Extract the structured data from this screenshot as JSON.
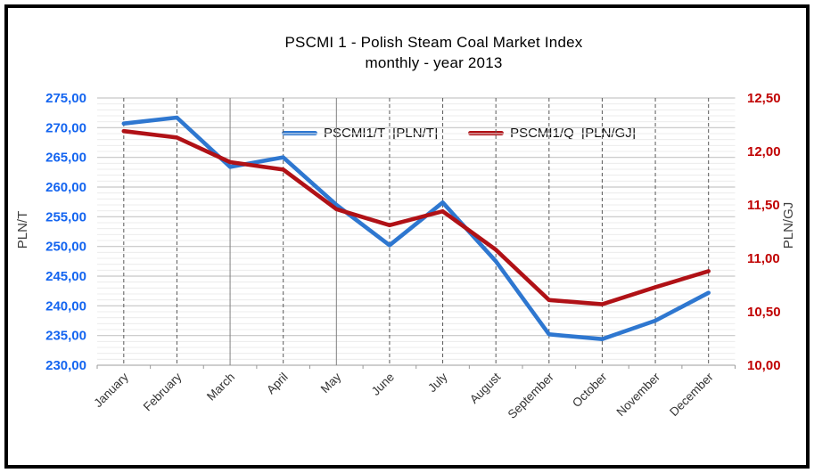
{
  "chart_data": {
    "type": "line",
    "title": "PSCMI 1 - Polish Steam Coal Market Index",
    "subtitle": "monthly - year  2013",
    "categories": [
      "January",
      "February",
      "March",
      "April",
      "May",
      "June",
      "July",
      "August",
      "September",
      "October",
      "November",
      "December"
    ],
    "series": [
      {
        "name": "PSCMI1/T  [PLN/T]",
        "axis": "left",
        "color": "#2e77d0",
        "values": [
          270.7,
          271.7,
          263.4,
          265.0,
          257.0,
          250.2,
          257.4,
          247.5,
          235.2,
          234.4,
          237.5,
          242.2
        ]
      },
      {
        "name": "PSCMI1/Q  [PLN/GJ]",
        "axis": "right",
        "color": "#b01116",
        "values": [
          12.19,
          12.13,
          11.9,
          11.83,
          11.46,
          11.31,
          11.44,
          11.08,
          10.61,
          10.57,
          10.73,
          10.88
        ]
      }
    ],
    "left_axis": {
      "title": "PLN/T",
      "min": 230,
      "max": 275,
      "major_step": 5,
      "minor_step": 1,
      "tick_labels": [
        "275,00",
        "270,00",
        "265,00",
        "260,00",
        "255,00",
        "250,00",
        "245,00",
        "240,00",
        "235,00",
        "230,00"
      ],
      "label_color": "#1465f0"
    },
    "right_axis": {
      "title": "PLN/GJ",
      "min": 10.0,
      "max": 12.5,
      "major_step": 0.5,
      "tick_labels": [
        "12,50",
        "12,00",
        "11,50",
        "11,00",
        "10,50",
        "10,00"
      ],
      "label_color": "#c00000"
    },
    "grid": {
      "h_minor_color": "#ececec",
      "h_major_color": "#c6c6c6",
      "axis_line_color": "#b0b0b0",
      "v_line_color": "#595959",
      "v_solid_indices": [
        2,
        4
      ],
      "x_label_color": "#333333"
    },
    "legend_position": "top-inside"
  }
}
